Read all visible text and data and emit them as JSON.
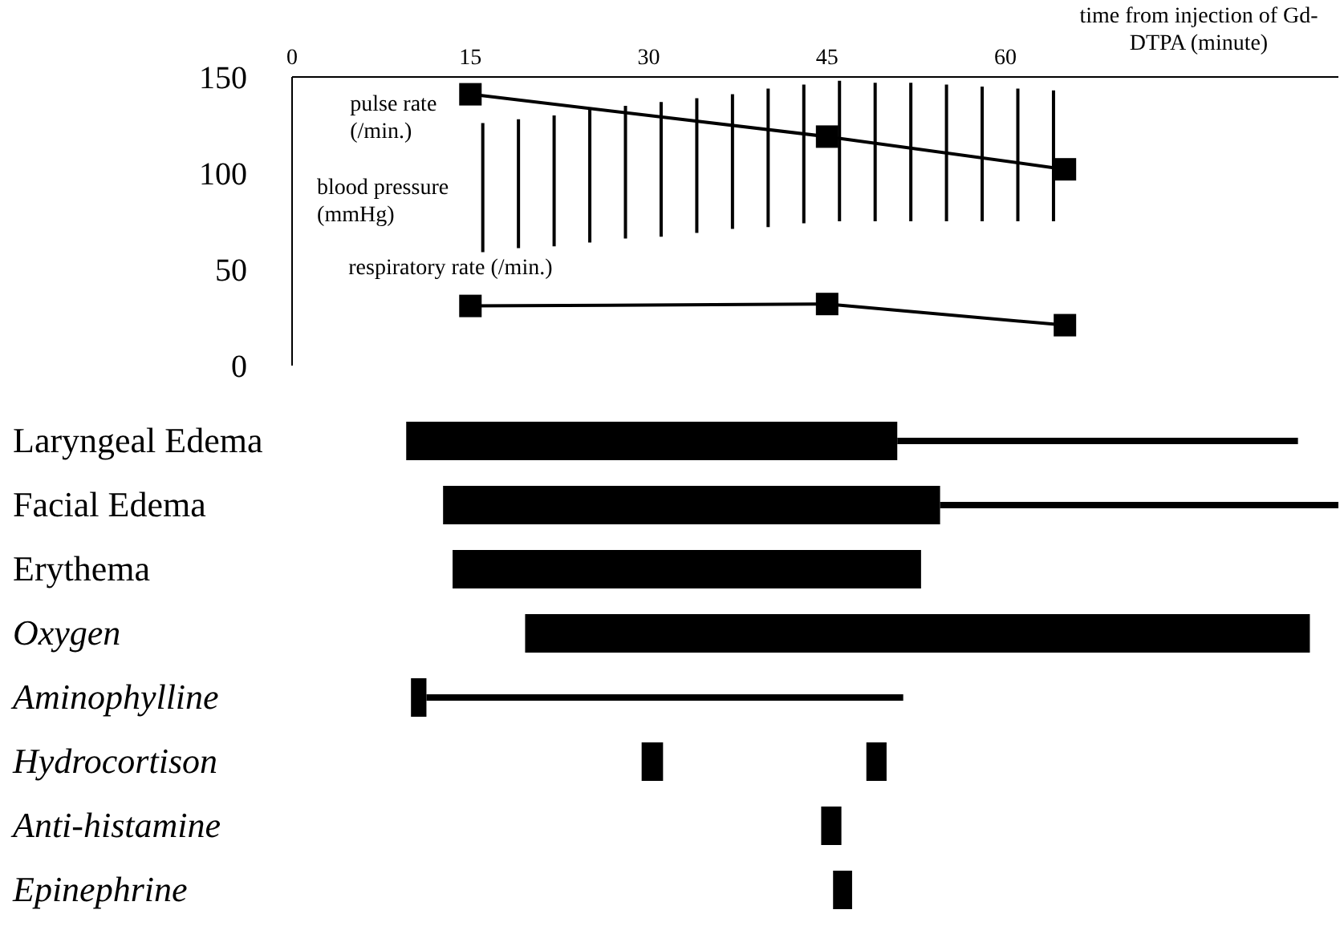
{
  "chart_data": [
    {
      "type": "line",
      "xlabel": "time from injection of Gd-DTPA (minute)",
      "xlim": [
        0,
        88
      ],
      "xticks": [
        0,
        15,
        30,
        45,
        60
      ],
      "ylim": [
        0,
        150
      ],
      "yticks": [
        0,
        50,
        100,
        150
      ],
      "marker": "square",
      "grid": false,
      "legend": false,
      "series": [
        {
          "name": "pulse rate (/min.)",
          "type": "line",
          "color": "#000000",
          "x": [
            15,
            45,
            65
          ],
          "values": [
            141,
            119,
            102
          ]
        },
        {
          "name": "blood pressure (mmHg)",
          "type": "bar",
          "color": "#000000",
          "x": [
            16,
            19,
            22,
            25,
            28,
            31,
            34,
            37,
            40,
            43,
            46,
            49,
            52,
            55,
            58,
            61,
            64
          ],
          "base": [
            59,
            61,
            62,
            64,
            66,
            67,
            69,
            71,
            72,
            74,
            75,
            75,
            75,
            75,
            75,
            75,
            75
          ],
          "values": [
            67,
            67,
            68,
            69,
            69,
            70,
            70,
            70,
            72,
            72,
            73,
            72,
            72,
            71,
            70,
            69,
            68
          ]
        },
        {
          "name": "respiratory rate (/min.)",
          "type": "line",
          "color": "#000000",
          "x": [
            15,
            45,
            65
          ],
          "values": [
            31,
            32,
            21
          ]
        }
      ]
    },
    {
      "type": "bar",
      "orientation": "horizontal",
      "xlim": [
        0,
        88
      ],
      "tick_labels": "y",
      "legend": false,
      "grid": false,
      "categories": [
        "Laryngeal Edema",
        "Facial Edema",
        "Erythema",
        "Oxygen",
        "Aminophylline",
        "Hydrocortison",
        "Anti-histamine",
        "Epinephrine"
      ],
      "series": [
        {
          "color": "#000000",
          "base": [
            9.6,
            12.7,
            13.5,
            19.6,
            10,
            29.4,
            44.5,
            45.5
          ],
          "values": [
            41.3,
            41.8,
            39.4,
            66,
            1.3,
            1.8,
            1.7,
            1.6
          ]
        },
        {
          "color": "#000000",
          "base": [
            50.9,
            54.5,
            null,
            null,
            11.3,
            null,
            null,
            null
          ],
          "values": [
            33.7,
            33.5,
            null,
            null,
            40.1,
            null,
            null,
            null
          ]
        },
        {
          "color": "#000000",
          "base": [
            null,
            null,
            null,
            null,
            null,
            48.3,
            null,
            null
          ],
          "values": [
            null,
            null,
            null,
            null,
            null,
            1.7,
            null,
            null
          ]
        }
      ]
    }
  ]
}
